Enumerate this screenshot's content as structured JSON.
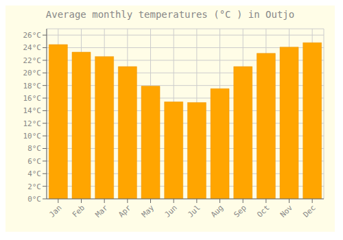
{
  "chart_data": {
    "type": "bar",
    "title": "Average monthly temperatures (°C ) in Outjo",
    "categories": [
      "Jan",
      "Feb",
      "Mar",
      "Apr",
      "May",
      "Jun",
      "Jul",
      "Aug",
      "Sep",
      "Oct",
      "Nov",
      "Dec"
    ],
    "values": [
      24.5,
      23.3,
      22.6,
      21.0,
      17.9,
      15.4,
      15.3,
      17.5,
      21.0,
      23.1,
      24.1,
      24.8
    ],
    "color": "#FFA500",
    "ylim": [
      0,
      27
    ],
    "yticks": [
      {
        "value": 0,
        "label": "0°C"
      },
      {
        "value": 2,
        "label": "2°C"
      },
      {
        "value": 4,
        "label": "4°C"
      },
      {
        "value": 6,
        "label": "6°C"
      },
      {
        "value": 8,
        "label": "8°C"
      },
      {
        "value": 10,
        "label": "10°C"
      },
      {
        "value": 12,
        "label": "12°C"
      },
      {
        "value": 14,
        "label": "14°C"
      },
      {
        "value": 16,
        "label": "16°C"
      },
      {
        "value": 18,
        "label": "18°C"
      },
      {
        "value": 20,
        "label": "20°C"
      },
      {
        "value": 22,
        "label": "22°C"
      },
      {
        "value": 24,
        "label": "24°C"
      },
      {
        "value": 26,
        "label": "26°C"
      }
    ],
    "grid": true
  }
}
